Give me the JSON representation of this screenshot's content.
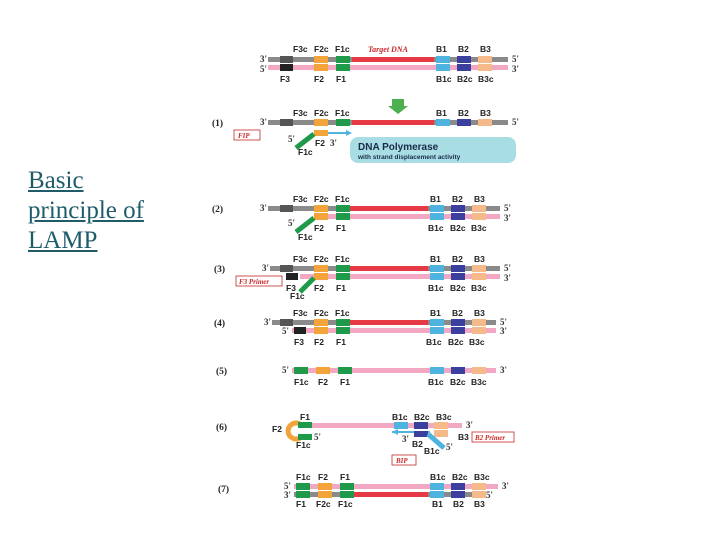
{
  "slide": {
    "title_lines": [
      "Basic",
      "principle of",
      "LAMP"
    ]
  },
  "colors": {
    "F3": "#222222",
    "F2": "#f2a33a",
    "F1": "#1e9a4a",
    "target": "#e63946",
    "B1": "#4fb3e0",
    "B2": "#3b3f9e",
    "B3": "#f5b98a",
    "strand_gray": "#8a8a8a",
    "strand_pink": "#f2a7c3",
    "label_red": "#c62828",
    "box_teal": "#a8dde3"
  },
  "labels": {
    "target_dna": "Target DNA",
    "fip": "FIP",
    "bip": "BIP",
    "f3_primer": "F3 Primer",
    "b2_primer": "B2 Primer",
    "dna_polymerase": "DNA Polymerase",
    "strand_displacement": "with strand displacement activity"
  },
  "top_labels": {
    "top": [
      "F3c",
      "F2c",
      "F1c",
      "B1",
      "B2",
      "B3"
    ],
    "bottom": [
      "F3",
      "F2",
      "F1",
      "B1c",
      "B2c",
      "B3c"
    ]
  },
  "steps": {
    "s1": {
      "number": "(1)",
      "top": [
        "F3c",
        "F2c",
        "F1c",
        "B1",
        "B2",
        "B3"
      ],
      "under": [
        "F1c",
        "F2",
        "3'"
      ]
    },
    "s2": {
      "number": "(2)",
      "top": [
        "F3c",
        "F2c",
        "F1c",
        "B1",
        "B2",
        "B3"
      ],
      "bottom": [
        "F2",
        "F1",
        "B1c",
        "B2c",
        "B3c"
      ],
      "flap": "F1c"
    },
    "s3": {
      "number": "(3)",
      "top": [
        "F3c",
        "F2c",
        "F1c",
        "B1",
        "B2",
        "B3"
      ],
      "bottom": [
        "F3",
        "F2",
        "F1",
        "B1c",
        "B2c",
        "B3c"
      ],
      "flap": "F1c"
    },
    "s4": {
      "number": "(4)",
      "top": [
        "F3c",
        "F2c",
        "F1c",
        "B1",
        "B2",
        "B3"
      ],
      "bottom": [
        "F3",
        "F2",
        "F1",
        "B1c",
        "B2c",
        "B3c"
      ]
    },
    "s5": {
      "number": "(5)",
      "bottom": [
        "F1c",
        "F2",
        "F1",
        "B1c",
        "B2c",
        "B3c"
      ]
    },
    "s6": {
      "number": "(6)",
      "f1": "F1",
      "f2": "F2",
      "f1c": "F1c",
      "right_top": [
        "B1c",
        "B2c",
        "B3c"
      ],
      "b2": "B2",
      "b1c": "B1c",
      "b3": "B3"
    },
    "s7": {
      "number": "(7)",
      "top": [
        "F1c",
        "F2",
        "F1",
        "B1c",
        "B2c",
        "B3c"
      ],
      "bottom": [
        "F1",
        "F2c",
        "F1c",
        "B1",
        "B2",
        "B3"
      ]
    }
  },
  "ends": {
    "three": "3'",
    "five": "5'"
  }
}
